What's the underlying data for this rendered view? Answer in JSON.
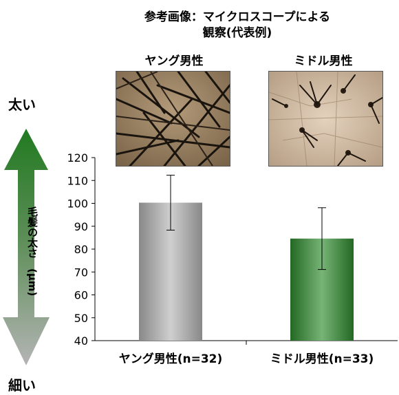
{
  "header": {
    "title_line1": "参考画像：マイクロスコープによる",
    "title_line2": "観察(代表例)"
  },
  "photos": [
    {
      "label": "ヤング男性"
    },
    {
      "label": "ミドル男性"
    }
  ],
  "arrow": {
    "top_label": "太い",
    "bottom_label": "細い"
  },
  "chart_data": {
    "type": "bar",
    "ylabel": "毛髪の太さ　(μm)",
    "ylim": [
      40,
      120
    ],
    "yticks": [
      40,
      50,
      60,
      70,
      80,
      90,
      100,
      110,
      120
    ],
    "categories": [
      "ヤング男性(n=32)",
      "ミドル男性(n=33)"
    ],
    "values": [
      100.3,
      84.6
    ],
    "error": [
      12.0,
      13.5
    ],
    "colors": [
      "#b5b5b5",
      "#2e8b2e"
    ]
  }
}
